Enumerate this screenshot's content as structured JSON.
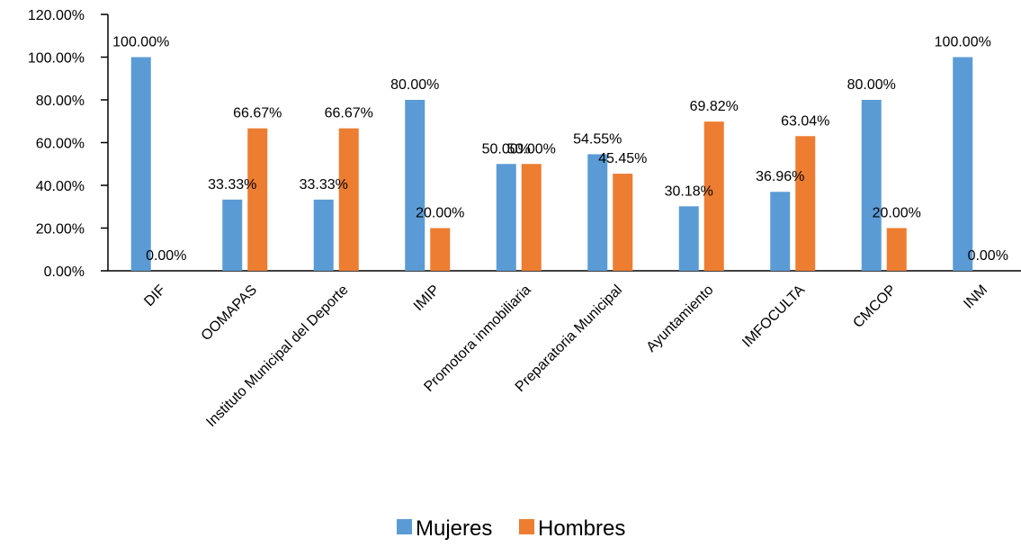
{
  "chart_data": {
    "type": "bar",
    "categories": [
      "DIF",
      "OOMAPAS",
      "Instituto Municipal del Deporte",
      "IMIP",
      "Promotora inmobiliaria",
      "Preparatoria Municipal",
      "Ayuntamiento",
      "IMFOCULTA",
      "CMCOP",
      "INM"
    ],
    "series": [
      {
        "name": "Mujeres",
        "color": "#5b9bd5",
        "values": [
          100.0,
          33.33,
          33.33,
          80.0,
          50.0,
          54.55,
          30.18,
          36.96,
          80.0,
          100.0
        ],
        "labels": [
          "100.00%",
          "33.33%",
          "33.33%",
          "80.00%",
          "50.00%",
          "54.55%",
          "30.18%",
          "36.96%",
          "80.00%",
          "100.00%"
        ]
      },
      {
        "name": "Hombres",
        "color": "#ed7d31",
        "values": [
          0.0,
          66.67,
          66.67,
          20.0,
          50.0,
          45.45,
          69.82,
          63.04,
          20.0,
          0.0
        ],
        "labels": [
          "0.00%",
          "66.67%",
          "66.67%",
          "20.00%",
          "50.00%",
          "45.45%",
          "69.82%",
          "63.04%",
          "20.00%",
          "0.00%"
        ]
      }
    ],
    "y_ticks": [
      "0.00%",
      "20.00%",
      "40.00%",
      "60.00%",
      "80.00%",
      "100.00%",
      "120.00%"
    ],
    "ylim": [
      0,
      120
    ],
    "title": "",
    "xlabel": "",
    "ylabel": "",
    "grid": false,
    "legend_position": "bottom"
  }
}
